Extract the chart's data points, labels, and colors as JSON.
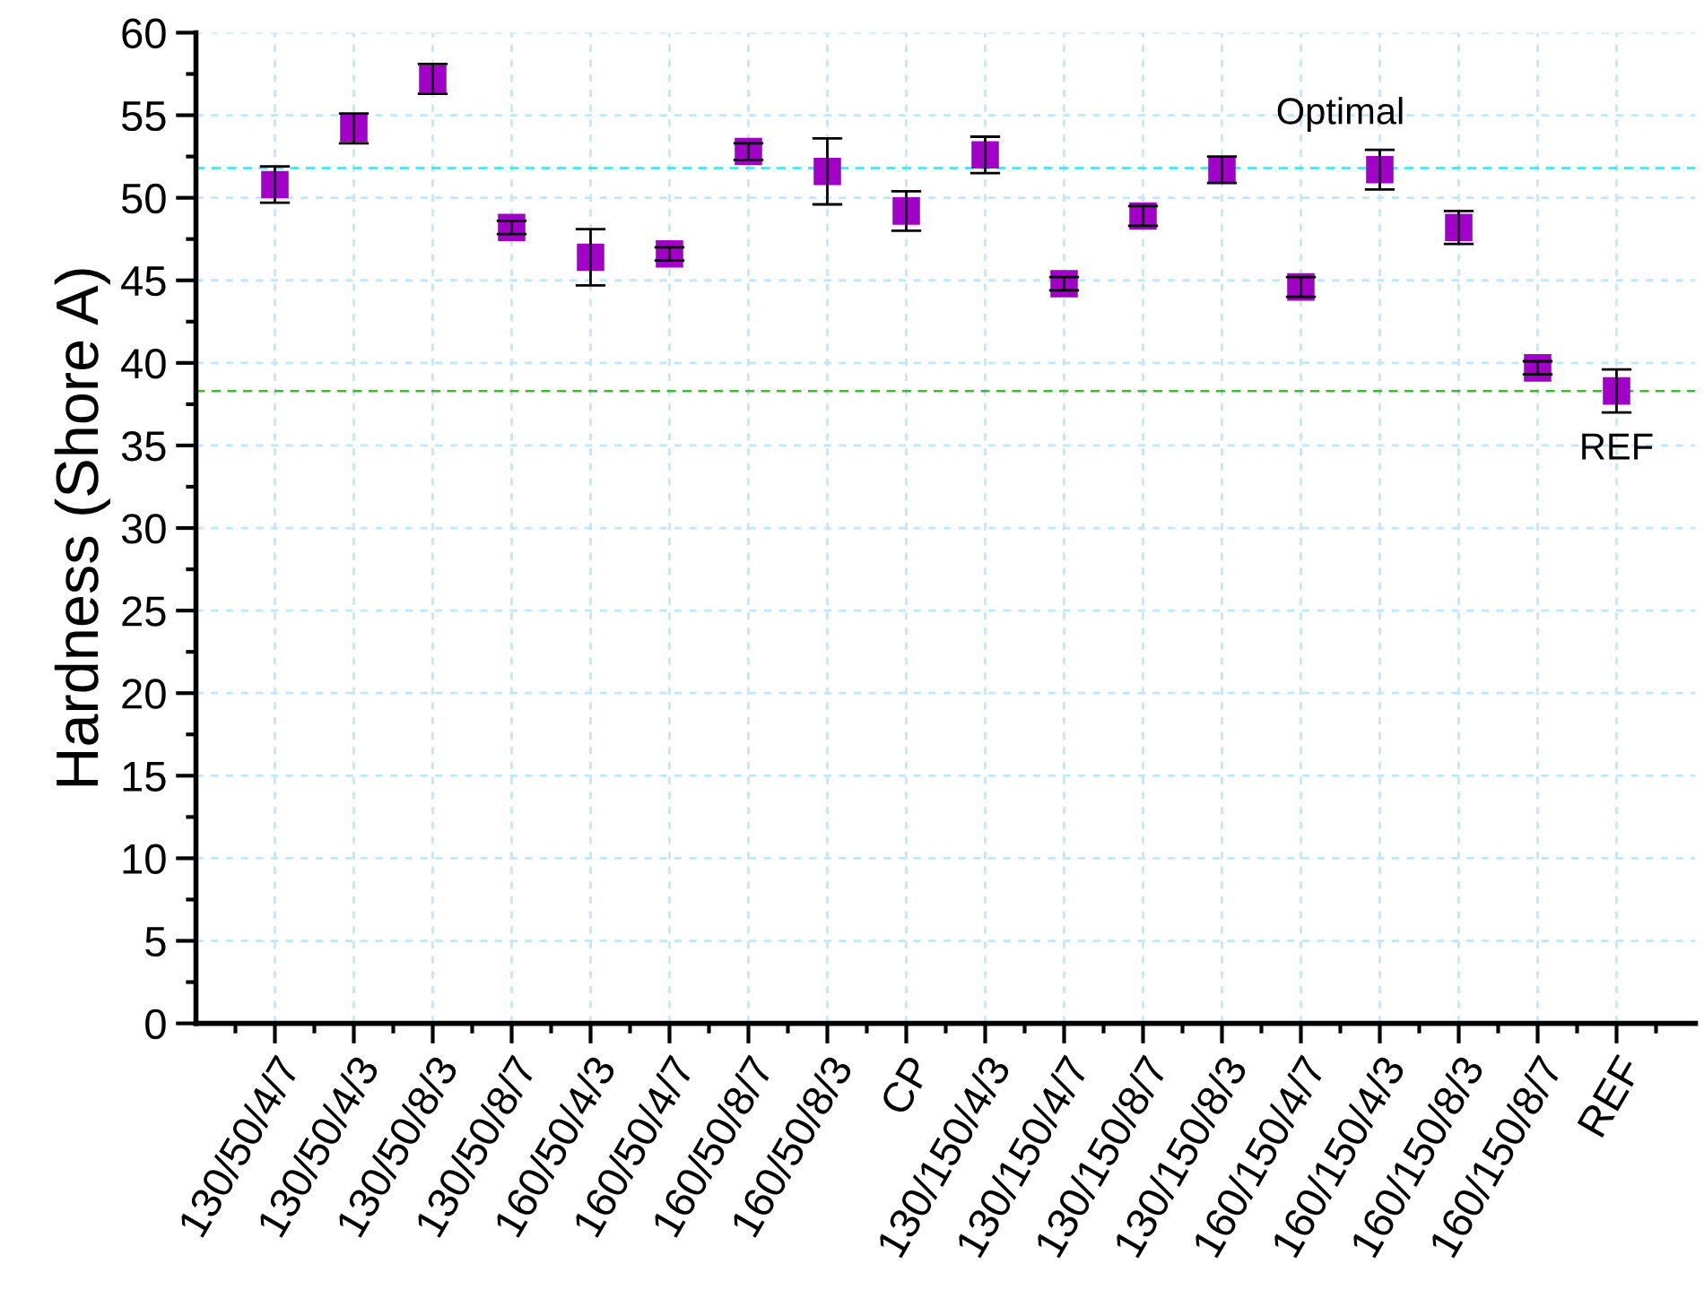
{
  "chart_data": {
    "type": "scatter",
    "ylabel": "Hardness (Shore A)",
    "categories": [
      "130/50/4/7",
      "130/50/4/3",
      "130/50/8/3",
      "130/50/8/7",
      "160/50/4/3",
      "160/50/4/7",
      "160/50/8/7",
      "160/50/8/3",
      "CP",
      "130/150/4/3",
      "130/150/4/7",
      "130/150/8/7",
      "130/150/8/3",
      "160/150/4/7",
      "160/150/4/3",
      "160/150/8/3",
      "160/150/8/7",
      "REF"
    ],
    "series": [
      {
        "color": "#a000c8",
        "values": [
          50.8,
          54.2,
          57.2,
          48.2,
          46.4,
          46.6,
          52.8,
          51.6,
          49.2,
          52.6,
          44.8,
          48.9,
          51.7,
          44.6,
          51.7,
          48.2,
          39.7,
          38.3
        ],
        "errors": [
          1.1,
          0.9,
          0.9,
          0.4,
          1.7,
          0.4,
          0.5,
          2.0,
          1.2,
          1.1,
          0.4,
          0.6,
          0.8,
          0.6,
          1.2,
          1.0,
          0.4,
          1.3
        ]
      }
    ],
    "ylim": [
      0,
      60
    ],
    "yticks": [
      0,
      5,
      10,
      15,
      20,
      25,
      30,
      35,
      40,
      45,
      50,
      55,
      60
    ],
    "marker": "square",
    "grid": true,
    "legend": false,
    "ref_lines": [
      {
        "axis": "y",
        "value": 51.8,
        "label": "Optimal",
        "color": "#40e0f0",
        "line_style": "dashed"
      },
      {
        "axis": "y",
        "value": 38.3,
        "label": "REF",
        "color": "#30c030",
        "line_style": "dashed"
      }
    ]
  }
}
